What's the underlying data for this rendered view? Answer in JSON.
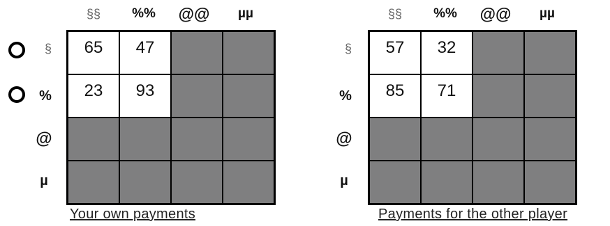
{
  "column_headers": [
    "§§",
    "%%",
    "@@",
    "µµ"
  ],
  "row_headers": [
    "§",
    "%",
    "@",
    "µ"
  ],
  "own": {
    "caption": "Your own payments",
    "values": [
      [
        "65",
        "47",
        "",
        ""
      ],
      [
        "23",
        "93",
        "",
        ""
      ],
      [
        "",
        "",
        "",
        ""
      ],
      [
        "",
        "",
        "",
        ""
      ]
    ]
  },
  "other": {
    "caption": "Payments for the other player",
    "values": [
      [
        "57",
        "32",
        "",
        ""
      ],
      [
        "85",
        "71",
        "",
        ""
      ],
      [
        "",
        "",
        "",
        ""
      ],
      [
        "",
        "",
        "",
        ""
      ]
    ]
  },
  "choices": [
    {
      "label": "choose-row-§",
      "row": "§"
    },
    {
      "label": "choose-row-%",
      "row": "%"
    }
  ],
  "colors": {
    "inactive_cell": "#7f7f80",
    "active_cell": "#ffffff",
    "grid": "#000000"
  }
}
